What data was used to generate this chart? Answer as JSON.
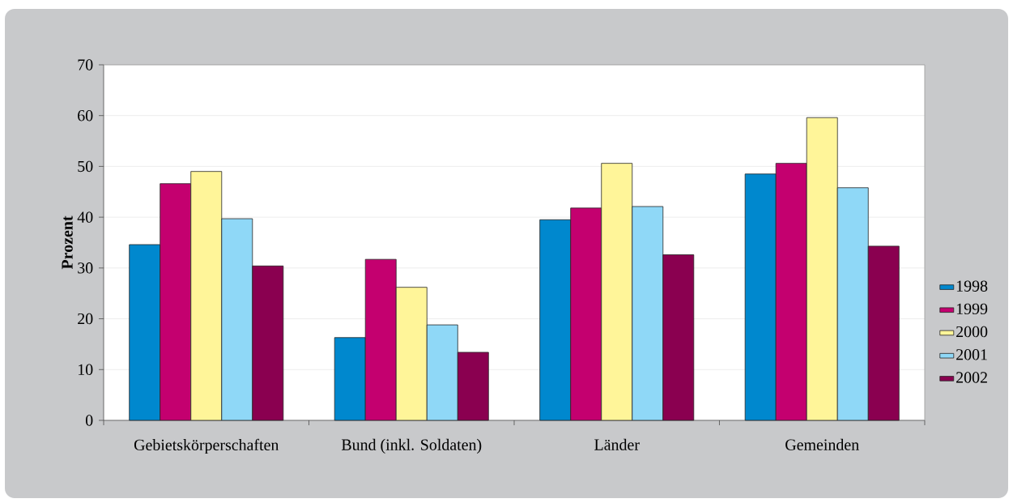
{
  "chart_data": {
    "type": "bar",
    "ylabel": "Prozent",
    "categories": [
      "Gebietskörperschaften",
      "Bund (inkl. Soldaten)",
      "Länder",
      "Gemeinden"
    ],
    "series": [
      {
        "name": "1998",
        "color": "#0088ce",
        "values": [
          34.6,
          16.3,
          39.5,
          48.5
        ]
      },
      {
        "name": "1999",
        "color": "#c4006f",
        "values": [
          46.6,
          31.7,
          41.8,
          50.6
        ]
      },
      {
        "name": "2000",
        "color": "#fff599",
        "values": [
          49.0,
          26.2,
          50.6,
          59.6
        ]
      },
      {
        "name": "2001",
        "color": "#8fd8f7",
        "values": [
          39.7,
          18.8,
          42.1,
          45.8
        ]
      },
      {
        "name": "2002",
        "color": "#8a0050",
        "values": [
          30.4,
          13.4,
          32.6,
          34.3
        ]
      }
    ],
    "ylim": [
      0,
      70
    ],
    "yticks": [
      0,
      10,
      20,
      30,
      40,
      50,
      60,
      70
    ],
    "grid": "y",
    "legend": "right"
  }
}
